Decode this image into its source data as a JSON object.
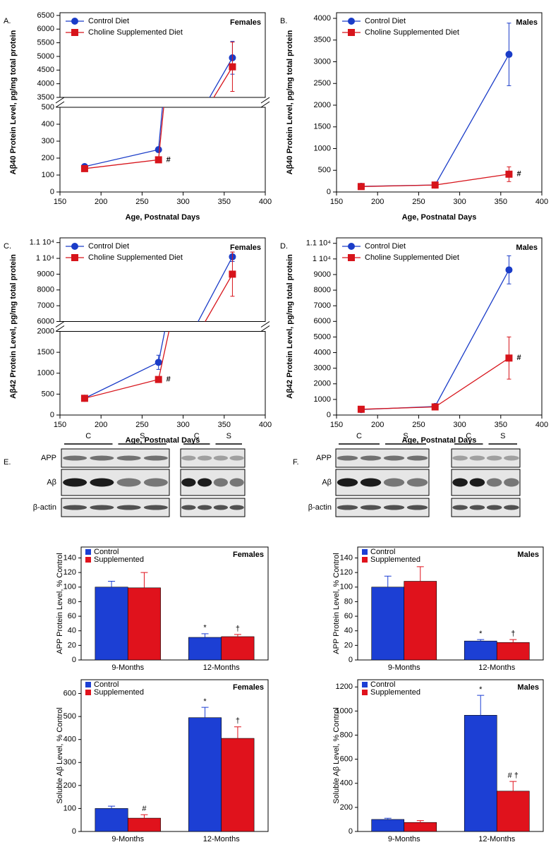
{
  "chart_data": [
    {
      "type": "line",
      "panel_label": "A.",
      "title": "Females",
      "xlabel": "Age, Postnatal Days",
      "ylabel": "Aβ40 Protein Level, pg/mg total protein",
      "x": [
        180,
        270,
        360
      ],
      "xlim": [
        150,
        400
      ],
      "xticks": [
        150,
        200,
        250,
        300,
        350,
        400
      ],
      "ylim": [
        0,
        6600
      ],
      "y_break": [
        500,
        3500
      ],
      "yticks": [
        0,
        100,
        200,
        300,
        400,
        500,
        3500,
        4000,
        4500,
        5000,
        5500,
        6000,
        6500
      ],
      "series": [
        {
          "name": "Control Diet",
          "color": "#1a3cc8",
          "marker": "circle",
          "values": [
            150,
            250,
            4950
          ],
          "errors": [
            10,
            15,
            600
          ]
        },
        {
          "name": "Choline Supplemented Diet",
          "color": "#d7141b",
          "marker": "square",
          "values": [
            138,
            190,
            4620
          ],
          "errors": [
            10,
            12,
            900
          ],
          "notes": [
            null,
            "#",
            null
          ]
        }
      ]
    },
    {
      "type": "line",
      "panel_label": "B.",
      "title": "Males",
      "xlabel": "Age, Postnatal Days",
      "ylabel": "Aβ40 Protein Level, pg/mg total protein",
      "x": [
        180,
        270,
        360
      ],
      "xlim": [
        150,
        400
      ],
      "xticks": [
        150,
        200,
        250,
        300,
        350,
        400
      ],
      "ylim": [
        0,
        4130
      ],
      "yticks": [
        0,
        500,
        1000,
        1500,
        2000,
        2500,
        3000,
        3500,
        4000
      ],
      "series": [
        {
          "name": "Control Diet",
          "color": "#1a3cc8",
          "marker": "circle",
          "values": [
            130,
            160,
            3170
          ],
          "errors": [
            20,
            20,
            720
          ]
        },
        {
          "name": "Choline Supplemented Diet",
          "color": "#d7141b",
          "marker": "square",
          "values": [
            125,
            160,
            410
          ],
          "errors": [
            20,
            20,
            170
          ],
          "notes": [
            null,
            null,
            "#"
          ]
        }
      ]
    },
    {
      "type": "line",
      "panel_label": "C.",
      "title": "Females",
      "xlabel": "Age, Postnatal Days",
      "ylabel": "Aβ42 Protein Level, pg/mg total protein",
      "x": [
        180,
        270,
        360
      ],
      "xlim": [
        150,
        400
      ],
      "xticks": [
        150,
        200,
        250,
        300,
        350,
        400
      ],
      "ylim": [
        0,
        11300
      ],
      "y_break": [
        2000,
        6000
      ],
      "yticks": [
        0,
        500,
        1000,
        1500,
        2000,
        6000,
        7000,
        8000,
        9000,
        {
          "value": 10000,
          "label": "1 10⁴"
        },
        {
          "value": 11000,
          "label": "1.1 10⁴"
        }
      ],
      "series": [
        {
          "name": "Control Diet",
          "color": "#1a3cc8",
          "marker": "circle",
          "values": [
            400,
            1260,
            10100
          ],
          "errors": [
            30,
            170,
            300
          ]
        },
        {
          "name": "Choline Supplemented Diet",
          "color": "#d7141b",
          "marker": "square",
          "values": [
            400,
            850,
            9000
          ],
          "errors": [
            30,
            40,
            1400
          ],
          "notes": [
            null,
            "#",
            null
          ]
        }
      ]
    },
    {
      "type": "line",
      "panel_label": "D.",
      "title": "Males",
      "xlabel": "Age, Postnatal Days",
      "ylabel": "Aβ42 Protein Level, pg/mg total protein",
      "x": [
        180,
        270,
        360
      ],
      "xlim": [
        150,
        400
      ],
      "xticks": [
        150,
        200,
        250,
        300,
        350,
        400
      ],
      "ylim": [
        0,
        11350
      ],
      "yticks": [
        0,
        1000,
        2000,
        3000,
        4000,
        5000,
        6000,
        7000,
        8000,
        9000,
        {
          "value": 10000,
          "label": "1 10⁴"
        },
        {
          "value": 11000,
          "label": "1.1 10⁴"
        }
      ],
      "series": [
        {
          "name": "Control Diet",
          "color": "#1a3cc8",
          "marker": "circle",
          "values": [
            350,
            550,
            9300
          ],
          "errors": [
            100,
            60,
            900
          ]
        },
        {
          "name": "Choline Supplemented Diet",
          "color": "#d7141b",
          "marker": "square",
          "values": [
            370,
            520,
            3650
          ],
          "errors": [
            80,
            60,
            1350
          ],
          "notes": [
            null,
            null,
            "#"
          ]
        }
      ]
    },
    {
      "type": "bar",
      "title": "Females",
      "ylabel": "APP Protein Level, % Control",
      "categories": [
        "9-Months",
        "12-Months"
      ],
      "ylim": [
        0,
        155
      ],
      "yticks": [
        0,
        20,
        40,
        60,
        80,
        100,
        120,
        140
      ],
      "series": [
        {
          "name": "Control",
          "color": "#1c3fd4",
          "values": [
            100,
            31
          ],
          "errors": [
            8,
            5
          ],
          "notes": [
            null,
            "*"
          ]
        },
        {
          "name": "Supplemented",
          "color": "#e0121c",
          "values": [
            99,
            32
          ],
          "errors": [
            21,
            3
          ],
          "notes": [
            null,
            "†"
          ]
        }
      ]
    },
    {
      "type": "bar",
      "title": "Females",
      "ylabel": "Soluble Aβ Level, % Control",
      "categories": [
        "9-Months",
        "12-Months"
      ],
      "ylim": [
        0,
        660
      ],
      "yticks": [
        0,
        100,
        200,
        300,
        400,
        500,
        600
      ],
      "series": [
        {
          "name": "Control",
          "color": "#1c3fd4",
          "values": [
            100,
            495
          ],
          "errors": [
            10,
            45
          ],
          "notes": [
            null,
            "*"
          ]
        },
        {
          "name": "Supplemented",
          "color": "#e0121c",
          "values": [
            58,
            405
          ],
          "errors": [
            15,
            50
          ],
          "notes": [
            "#",
            "†"
          ]
        }
      ]
    },
    {
      "type": "bar",
      "title": "Males",
      "ylabel": "APP Protein Level, % Control",
      "categories": [
        "9-Months",
        "12-Months"
      ],
      "ylim": [
        0,
        155
      ],
      "yticks": [
        0,
        20,
        40,
        60,
        80,
        100,
        120,
        140
      ],
      "series": [
        {
          "name": "Control",
          "color": "#1c3fd4",
          "values": [
            100,
            26
          ],
          "errors": [
            15,
            2
          ],
          "notes": [
            null,
            "*"
          ]
        },
        {
          "name": "Supplemented",
          "color": "#e0121c",
          "values": [
            108,
            24
          ],
          "errors": [
            20,
            4
          ],
          "notes": [
            null,
            "†"
          ]
        }
      ]
    },
    {
      "type": "bar",
      "title": "Males",
      "ylabel": "Soluble Aβ Level, % Control",
      "categories": [
        "9-Months",
        "12-Months"
      ],
      "ylim": [
        0,
        1260
      ],
      "yticks": [
        0,
        200,
        400,
        600,
        800,
        1000,
        1200
      ],
      "series": [
        {
          "name": "Control",
          "color": "#1c3fd4",
          "values": [
            100,
            965
          ],
          "errors": [
            10,
            165
          ],
          "notes": [
            null,
            "*"
          ]
        },
        {
          "name": "Supplemented",
          "color": "#e0121c",
          "values": [
            75,
            335
          ],
          "errors": [
            15,
            80
          ],
          "notes": [
            null,
            "# †"
          ]
        }
      ]
    }
  ],
  "blots": [
    {
      "panel_label": "E.",
      "groups": [
        "C",
        "S",
        "C",
        "S"
      ],
      "rows": [
        "APP",
        "Aβ",
        "β-actin"
      ]
    },
    {
      "panel_label": "F.",
      "groups": [
        "C",
        "S",
        "C",
        "S"
      ],
      "rows": [
        "APP",
        "Aβ",
        "β-actin"
      ]
    }
  ]
}
